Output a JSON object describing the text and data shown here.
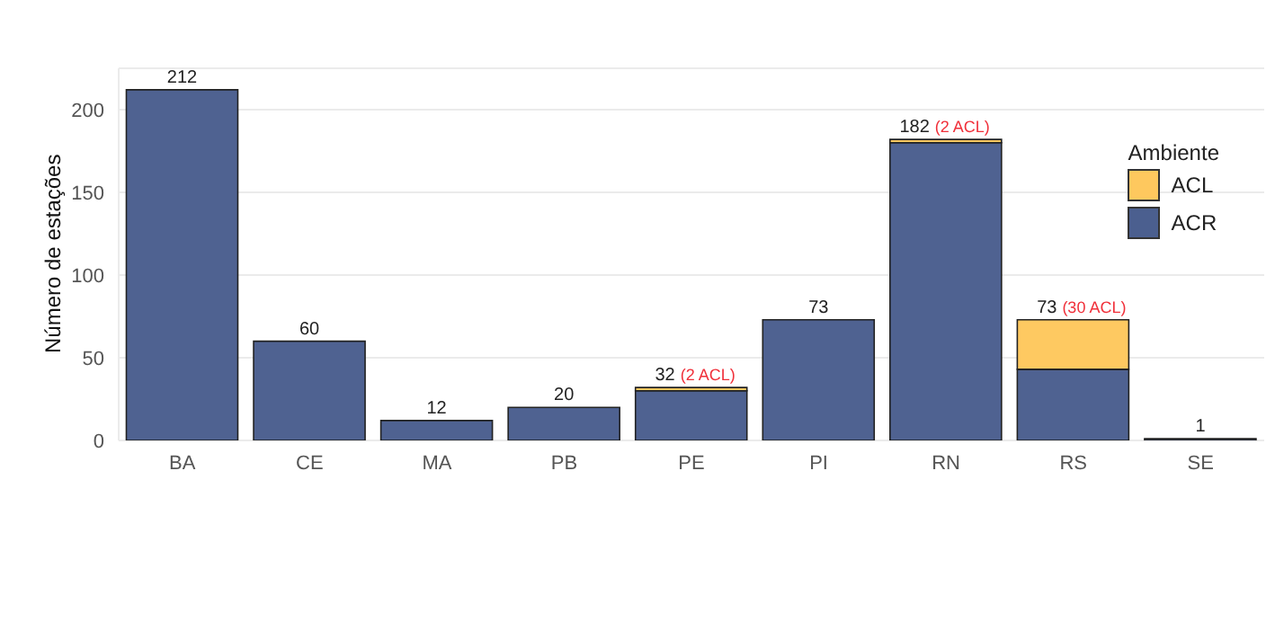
{
  "chart_data": {
    "type": "bar",
    "ylabel": "Número de estações",
    "legend_title": "Ambiente",
    "categories": [
      "BA",
      "CE",
      "MA",
      "PB",
      "PE",
      "PI",
      "RN",
      "RS",
      "SE"
    ],
    "series": [
      {
        "name": "ACR",
        "color": "#4b5f8f",
        "values": [
          212,
          60,
          12,
          20,
          30,
          73,
          180,
          43,
          1
        ]
      },
      {
        "name": "ACL",
        "color": "#fec85e",
        "values": [
          0,
          0,
          0,
          0,
          2,
          0,
          2,
          30,
          0
        ]
      }
    ],
    "stacked": true,
    "totals": [
      "212",
      "60",
      "12",
      "20",
      "32",
      "73",
      "182",
      "73",
      "1"
    ],
    "annotations": [
      {
        "text": "(2 ACL)",
        "x": "PE",
        "y": 32
      },
      {
        "text": "(2 ACL)",
        "x": "RN",
        "y": 182
      },
      {
        "text": "(30 ACL)",
        "x": "RS",
        "y": 73
      }
    ],
    "ylim": [
      0,
      225
    ],
    "yticks": [
      0,
      50,
      100,
      150,
      200
    ],
    "grid": "y",
    "legend": "top right"
  }
}
